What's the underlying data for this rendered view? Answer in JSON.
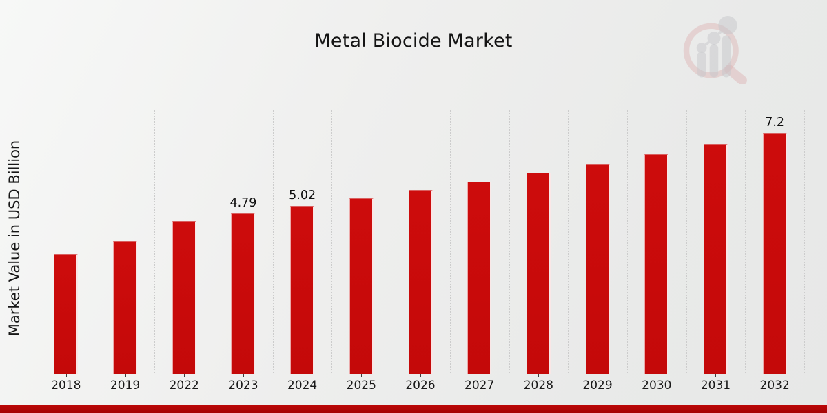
{
  "chart_data": {
    "type": "bar",
    "title": "Metal Biocide Market",
    "ylabel": "Market Value in USD Billion",
    "xlabel": "",
    "categories": [
      "2018",
      "2019",
      "2022",
      "2023",
      "2024",
      "2025",
      "2026",
      "2027",
      "2028",
      "2029",
      "2030",
      "2031",
      "2032"
    ],
    "values": [
      3.58,
      3.98,
      4.58,
      4.79,
      5.02,
      5.25,
      5.49,
      5.74,
      6.01,
      6.28,
      6.57,
      6.87,
      7.2
    ],
    "data_labels": {
      "2023": "4.79",
      "2024": "5.02",
      "2032": "7.2"
    },
    "ylim": [
      0,
      7.9
    ],
    "grid": "vertical",
    "legend": "none",
    "bar_color": "#c90b0b",
    "label_color": "#0f0f0f"
  },
  "branding": {
    "watermark": "magnifying-glass-bar-chart-logo",
    "accent_red": "#c90b0b",
    "footer_bar_color": "#a50404"
  }
}
